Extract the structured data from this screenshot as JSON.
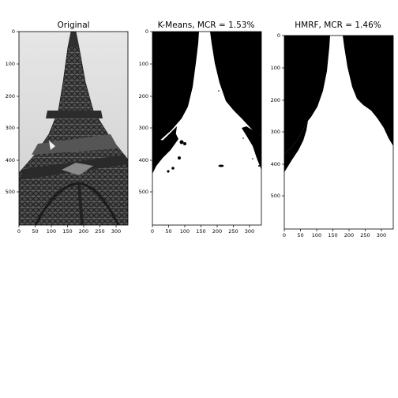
{
  "figure": {
    "panels": [
      {
        "id": "original",
        "title": "Original",
        "image": "grayscale photograph of the Eiffel Tower lattice viewed from below",
        "x_ticks": [
          "0",
          "50",
          "100",
          "150",
          "200",
          "250",
          "300"
        ],
        "y_ticks": [
          "0",
          "100",
          "200",
          "300",
          "400",
          "500"
        ]
      },
      {
        "id": "kmeans",
        "title": "K-Means, MCR = 1.53%",
        "image": "binary segmentation mask: white tower silhouette on black sky",
        "x_ticks": [
          "0",
          "50",
          "100",
          "150",
          "200",
          "250",
          "300"
        ],
        "y_ticks": [
          "0",
          "100",
          "200",
          "300",
          "400",
          "500"
        ]
      },
      {
        "id": "hmrf",
        "title": "HMRF, MCR = 1.46%",
        "image": "binary segmentation mask: white tower silhouette on black sky",
        "x_ticks": [
          "0",
          "50",
          "100",
          "150",
          "200",
          "250",
          "300"
        ],
        "y_ticks": [
          "0",
          "100",
          "200",
          "300",
          "400",
          "500"
        ]
      }
    ],
    "colors": {
      "background": "#ffffff",
      "mask_foreground": "#ffffff",
      "mask_background": "#000000",
      "sky": "#dcdcdc",
      "iron": "#3a3a3a"
    }
  }
}
